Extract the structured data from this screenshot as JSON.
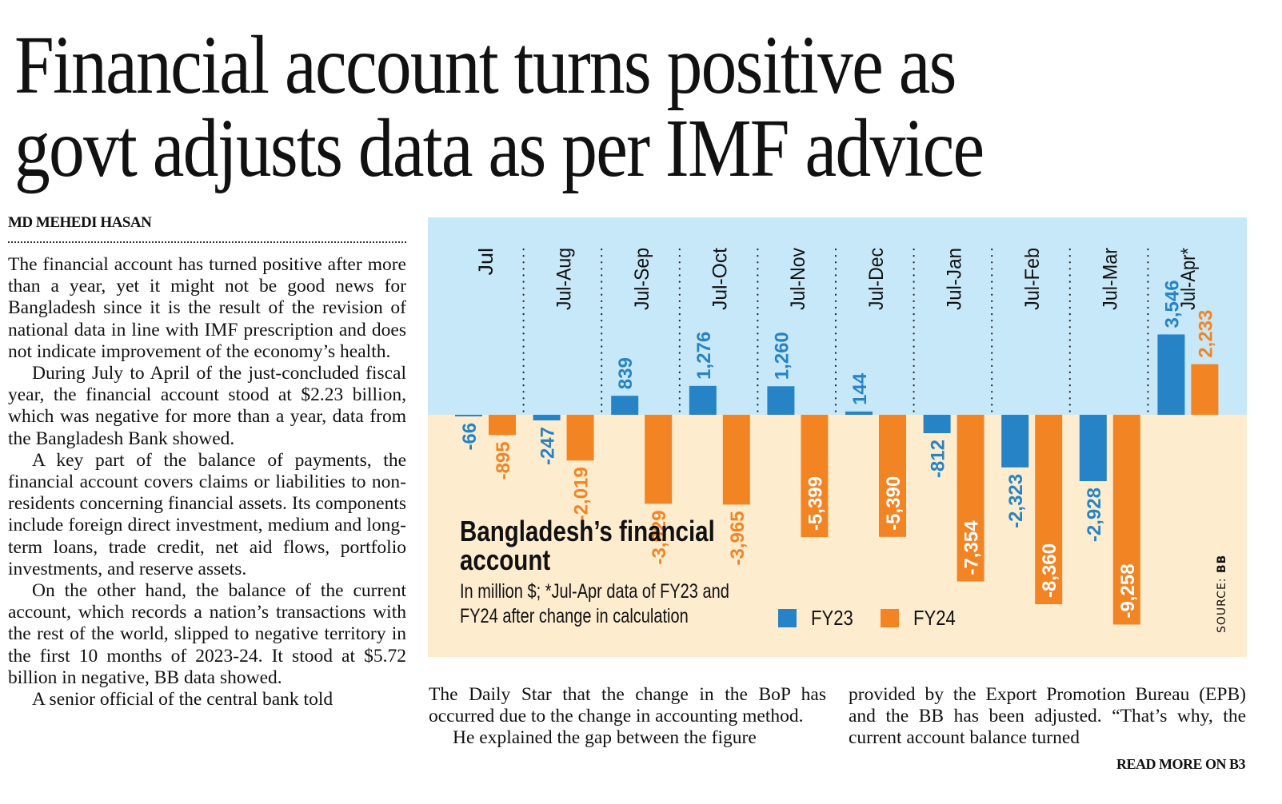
{
  "article": {
    "headline_line1": "Financial account turns positive as",
    "headline_line2": "govt adjusts data as per IMF advice",
    "byline": "MD MEHEDI HASAN",
    "col1": [
      "The financial account has turned positive after more than a year, yet it might not be good news for Bangladesh since it is the result of the revision of national data in line with IMF prescription and does not indicate improvement of the economy’s health.",
      "During July to April of the just-concluded fiscal year, the financial account stood at $2.23 billion, which was negative for more than a year, data from the Bangladesh Bank showed.",
      "A key part of the balance of payments, the financial account covers claims or liabilities to non-residents concerning financial assets. Its components include foreign direct investment, medium and long-term loans, trade credit, net aid flows, portfolio investments, and reserve assets.",
      "On the other hand, the balance of the current account, which records a nation’s transactions with the rest of the world, slipped to negative territory in the first 10 months of 2023-24. It stood at $5.72 billion in negative, BB data showed.",
      "A senior official of the central bank told"
    ],
    "col2": [
      "The Daily Star that the change in the BoP has occurred due to the change in accounting method.",
      "He explained the gap between the figure"
    ],
    "col3": [
      "provided by the Export Promotion Bureau (EPB) and the BB has been adjusted. “That’s why, the current account balance turned"
    ],
    "read_more": "READ MORE ON B3"
  },
  "chart_data": {
    "type": "bar",
    "title": "Bangladesh’s financial account",
    "subtitle_line1": "In million $; *Jul-Apr data of FY23 and",
    "subtitle_line2": "FY24 after change in calculation",
    "source_label": "SOURCE: ",
    "source_value": "BB",
    "xlabel": "",
    "ylabel": "In million $",
    "legend_position": "bottom-center",
    "grid": false,
    "categories": [
      "Jul",
      "Jul-Aug",
      "Jul-Sep",
      "Jul-Oct",
      "Jul-Nov",
      "Jul-Dec",
      "Jul-Jan",
      "Jul-Feb",
      "Jul-Mar",
      "Jul-Apr*"
    ],
    "series": [
      {
        "name": "FY23",
        "color": "#2583c6",
        "values": [
          -66,
          -247,
          839,
          1276,
          1260,
          144,
          -812,
          -2323,
          -2928,
          3546
        ],
        "labels": [
          "-66",
          "-247",
          "839",
          "1,276",
          "1,260",
          "144",
          "-812",
          "-2,323",
          "-2,928",
          "3,546"
        ]
      },
      {
        "name": "FY24",
        "color": "#f38423",
        "values": [
          -895,
          -2019,
          -3929,
          -3965,
          -5399,
          -5390,
          -7354,
          -8360,
          -9258,
          2233
        ],
        "labels": [
          "-895",
          "-2,019",
          "-3,929",
          "-3,965",
          "-5,399",
          "-5,390",
          "-7,354",
          "-8,360",
          "-9,258",
          "2,233"
        ]
      }
    ],
    "ylim": [
      -10000,
      8000
    ],
    "colors": {
      "positive_bg": "#c6e8f8",
      "negative_bg": "#feeccf"
    }
  }
}
